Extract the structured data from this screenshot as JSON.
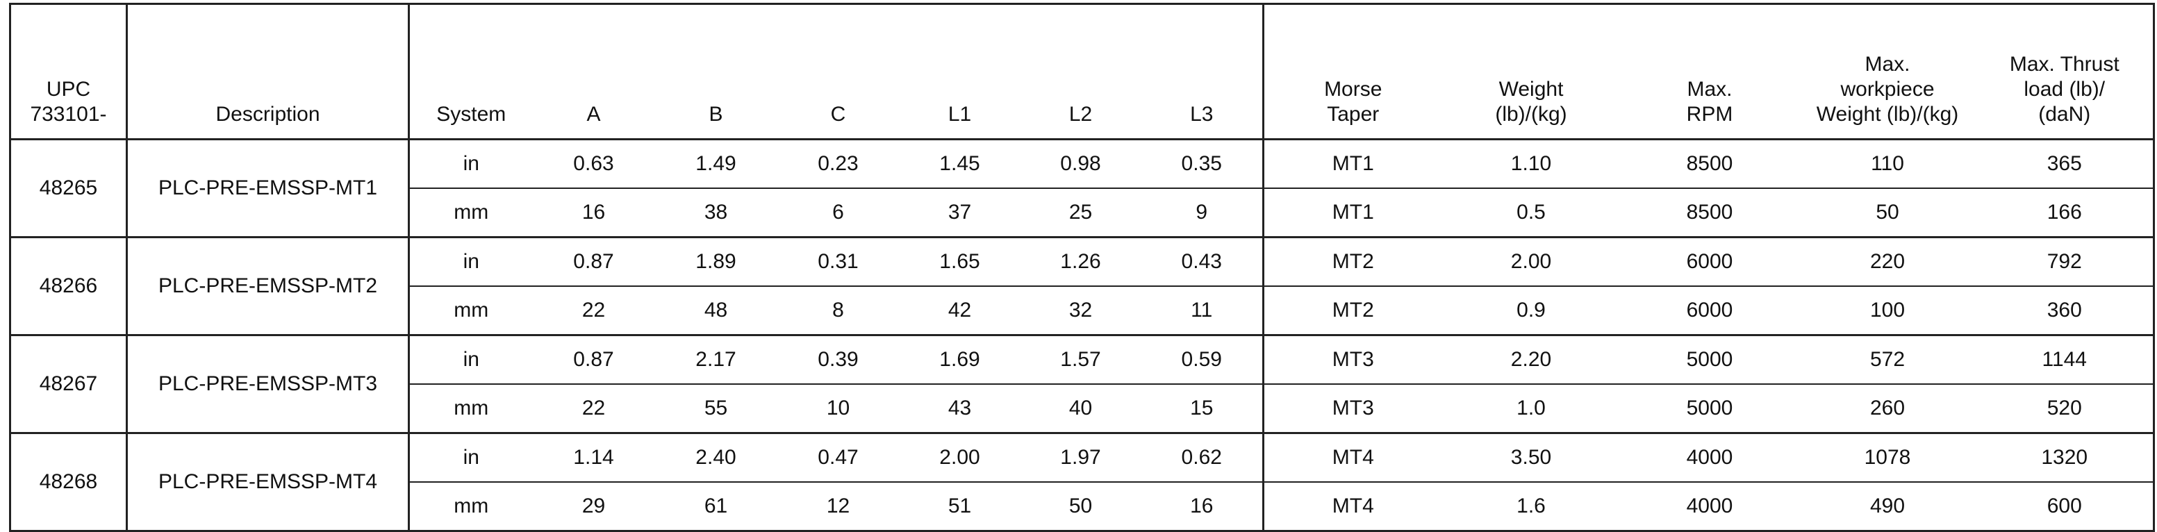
{
  "table": {
    "headers": [
      "UPC\n733101-",
      "Description",
      "System",
      "A",
      "B",
      "C",
      "L1",
      "L2",
      "L3",
      "Morse\nTaper",
      "Weight\n(lb)/(kg)",
      "Max.\nRPM",
      "Max.\nworkpiece\nWeight (lb)/(kg)",
      "Max. Thrust\nload (lb)/\n(daN)"
    ],
    "products": [
      {
        "upc": "48265",
        "description": "PLC-PRE-EMSSP-MT1",
        "rows": [
          [
            "in",
            "0.63",
            "1.49",
            "0.23",
            "1.45",
            "0.98",
            "0.35",
            "MT1",
            "1.10",
            "8500",
            "110",
            "365"
          ],
          [
            "mm",
            "16",
            "38",
            "6",
            "37",
            "25",
            "9",
            "MT1",
            "0.5",
            "8500",
            "50",
            "166"
          ]
        ]
      },
      {
        "upc": "48266",
        "description": "PLC-PRE-EMSSP-MT2",
        "rows": [
          [
            "in",
            "0.87",
            "1.89",
            "0.31",
            "1.65",
            "1.26",
            "0.43",
            "MT2",
            "2.00",
            "6000",
            "220",
            "792"
          ],
          [
            "mm",
            "22",
            "48",
            "8",
            "42",
            "32",
            "11",
            "MT2",
            "0.9",
            "6000",
            "100",
            "360"
          ]
        ]
      },
      {
        "upc": "48267",
        "description": "PLC-PRE-EMSSP-MT3",
        "rows": [
          [
            "in",
            "0.87",
            "2.17",
            "0.39",
            "1.69",
            "1.57",
            "0.59",
            "MT3",
            "2.20",
            "5000",
            "572",
            "1144"
          ],
          [
            "mm",
            "22",
            "55",
            "10",
            "43",
            "40",
            "15",
            "MT3",
            "1.0",
            "5000",
            "260",
            "520"
          ]
        ]
      },
      {
        "upc": "48268",
        "description": "PLC-PRE-EMSSP-MT4",
        "rows": [
          [
            "in",
            "1.14",
            "2.40",
            "0.47",
            "2.00",
            "1.97",
            "0.62",
            "MT4",
            "3.50",
            "4000",
            "1078",
            "1320"
          ],
          [
            "mm",
            "29",
            "61",
            "12",
            "51",
            "50",
            "16",
            "MT4",
            "1.6",
            "4000",
            "490",
            "600"
          ]
        ]
      }
    ]
  }
}
